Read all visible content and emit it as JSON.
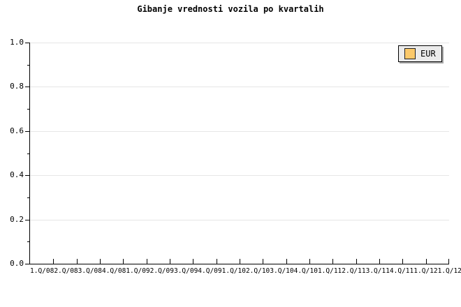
{
  "chart": {
    "title": "Gibanje vrednosti vozila po kvartalih"
  },
  "legend": {
    "items": [
      {
        "label": "EUR",
        "color": "#FBC96B"
      }
    ]
  },
  "chart_data": {
    "type": "line",
    "title": "Gibanje vrednosti vozila po kvartalih",
    "xlabel": "",
    "ylabel": "",
    "categories": [
      "1.Q/08",
      "2.Q/08",
      "3.Q/08",
      "4.Q/08",
      "1.Q/09",
      "2.Q/09",
      "3.Q/09",
      "4.Q/09",
      "1.Q/10",
      "2.Q/10",
      "3.Q/10",
      "4.Q/10",
      "1.Q/11",
      "2.Q/11",
      "3.Q/11",
      "4.Q/11",
      "1.Q/12",
      "1.Q/12"
    ],
    "series": [
      {
        "name": "EUR",
        "values": []
      }
    ],
    "ylim": [
      0.0,
      1.0
    ],
    "y_tick_labels": [
      "0.0",
      "0.2",
      "0.4",
      "0.6",
      "0.8",
      "1.0"
    ],
    "y_minor_ticks": [
      0.1,
      0.3,
      0.5,
      0.7,
      0.9
    ],
    "grid": "horizontal-major",
    "legend_position": "top-right",
    "legend_entries": [
      "EUR"
    ]
  },
  "colors": {
    "background": "#ffffff",
    "text": "#000000",
    "axis": "#000000",
    "gridline": "#e6e6e6",
    "legend_background": "#ebebeb",
    "legend_border": "#000000",
    "legend_shadow": "#a9a9a9",
    "series_eur": "#FBC96B"
  }
}
